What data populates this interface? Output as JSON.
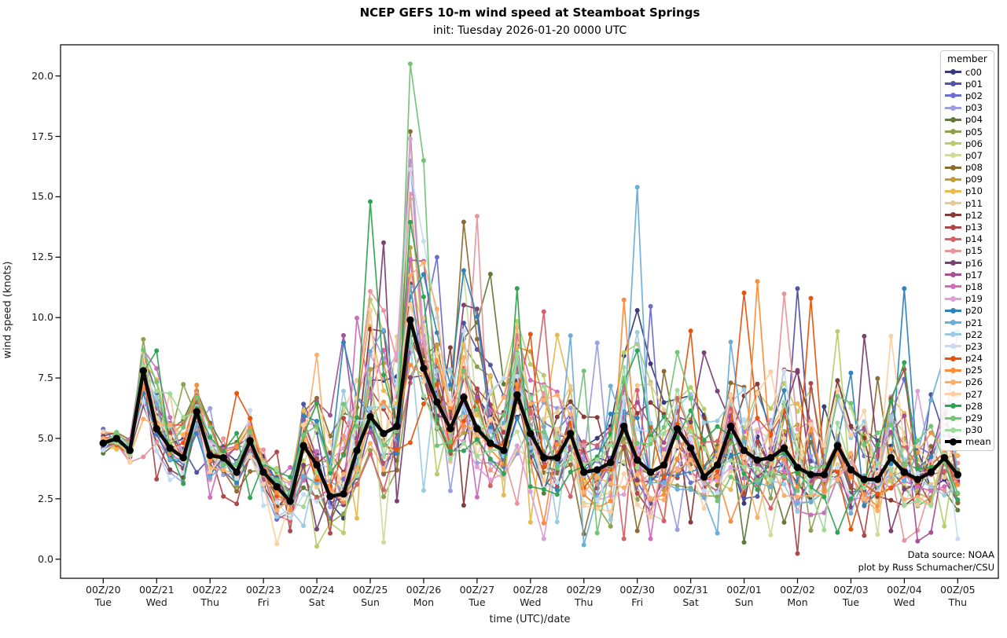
{
  "figure": {
    "title": "NCEP GEFS 10-m wind speed at Steamboat Springs",
    "subtitle": "init: Tuesday 2026-01-20 0000 UTC"
  },
  "axes": {
    "ylabel": "wind speed (knots)",
    "xlabel": "time (UTC)/date"
  },
  "annotation": {
    "line1": "Data source: NOAA",
    "line2": "plot by Russ Schumacher/CSU"
  },
  "legend": {
    "title": "member"
  },
  "chart_data": {
    "type": "line",
    "title": "NCEP GEFS 10-m wind speed at Steamboat Springs",
    "subtitle": "init: Tuesday 2026-01-20 0000 UTC",
    "xlabel": "time (UTC)/date",
    "ylabel": "wind speed (knots)",
    "legend_title": "member",
    "legend_position": "upper right",
    "grid": false,
    "time_step_hours": 6,
    "n_times": 65,
    "ylim": [
      -0.8,
      21.3
    ],
    "y_ticks": [
      "0.0",
      "2.5",
      "5.0",
      "7.5",
      "10.0",
      "12.5",
      "15.0",
      "17.5",
      "20.0"
    ],
    "y_tick_values": [
      0,
      2.5,
      5,
      7.5,
      10,
      12.5,
      15,
      17.5,
      20
    ],
    "x_tick_labels": [
      [
        "00Z/20",
        "Tue"
      ],
      [
        "00Z/21",
        "Wed"
      ],
      [
        "00Z/22",
        "Thu"
      ],
      [
        "00Z/23",
        "Fri"
      ],
      [
        "00Z/24",
        "Sat"
      ],
      [
        "00Z/25",
        "Sun"
      ],
      [
        "00Z/26",
        "Mon"
      ],
      [
        "00Z/27",
        "Tue"
      ],
      [
        "00Z/28",
        "Wed"
      ],
      [
        "00Z/29",
        "Thu"
      ],
      [
        "00Z/30",
        "Fri"
      ],
      [
        "00Z/31",
        "Sat"
      ],
      [
        "00Z/01",
        "Sun"
      ],
      [
        "00Z/02",
        "Mon"
      ],
      [
        "00Z/03",
        "Tue"
      ],
      [
        "00Z/04",
        "Wed"
      ],
      [
        "00Z/05",
        "Thu"
      ]
    ],
    "members": [
      {
        "name": "c00",
        "color": "#393b79"
      },
      {
        "name": "p01",
        "color": "#5254a3"
      },
      {
        "name": "p02",
        "color": "#6b6ecf"
      },
      {
        "name": "p03",
        "color": "#9c9ede"
      },
      {
        "name": "p04",
        "color": "#637939"
      },
      {
        "name": "p05",
        "color": "#8ca252"
      },
      {
        "name": "p06",
        "color": "#b5cf6b"
      },
      {
        "name": "p07",
        "color": "#cedb9c"
      },
      {
        "name": "p08",
        "color": "#8c6d31"
      },
      {
        "name": "p09",
        "color": "#bd9e39"
      },
      {
        "name": "p10",
        "color": "#e7ba52"
      },
      {
        "name": "p11",
        "color": "#e7cb94"
      },
      {
        "name": "p12",
        "color": "#843c39"
      },
      {
        "name": "p13",
        "color": "#ad494a"
      },
      {
        "name": "p14",
        "color": "#d6616b"
      },
      {
        "name": "p15",
        "color": "#e7969c"
      },
      {
        "name": "p16",
        "color": "#7b4173"
      },
      {
        "name": "p17",
        "color": "#a55194"
      },
      {
        "name": "p18",
        "color": "#ce6dbd"
      },
      {
        "name": "p19",
        "color": "#de9ed6"
      },
      {
        "name": "p20",
        "color": "#3182bd"
      },
      {
        "name": "p21",
        "color": "#6baed6"
      },
      {
        "name": "p22",
        "color": "#9ecae1"
      },
      {
        "name": "p23",
        "color": "#c6dbef"
      },
      {
        "name": "p24",
        "color": "#e6550d"
      },
      {
        "name": "p25",
        "color": "#fd8d3c"
      },
      {
        "name": "p26",
        "color": "#fdae6b"
      },
      {
        "name": "p27",
        "color": "#fdd0a2"
      },
      {
        "name": "p28",
        "color": "#31a354"
      },
      {
        "name": "p29",
        "color": "#74c476"
      },
      {
        "name": "p30",
        "color": "#a1d99b"
      },
      {
        "name": "mean",
        "color": "#000000"
      }
    ],
    "mean_series": [
      4.8,
      5.0,
      4.5,
      7.8,
      5.4,
      4.6,
      4.2,
      6.1,
      4.3,
      4.2,
      3.6,
      4.9,
      3.6,
      3.0,
      2.4,
      4.7,
      3.9,
      2.6,
      2.7,
      4.5,
      5.9,
      5.2,
      5.5,
      9.9,
      7.9,
      6.5,
      5.4,
      6.7,
      5.4,
      4.8,
      4.5,
      6.8,
      5.2,
      4.2,
      4.2,
      5.2,
      3.6,
      3.7,
      4.0,
      5.5,
      4.1,
      3.6,
      3.9,
      5.4,
      4.6,
      3.4,
      3.9,
      5.5,
      4.5,
      4.1,
      4.2,
      4.6,
      3.8,
      3.5,
      3.5,
      4.7,
      3.7,
      3.3,
      3.3,
      4.2,
      3.6,
      3.3,
      3.6,
      4.2,
      3.5
    ],
    "ensemble_max": [
      5.5,
      5.4,
      5.2,
      9.1,
      8.8,
      7.0,
      7.4,
      7.4,
      6.4,
      5.0,
      7.1,
      6.3,
      4.6,
      4.5,
      4.0,
      8.0,
      8.7,
      6.0,
      9.3,
      10.0,
      14.8,
      13.1,
      9.4,
      20.5,
      16.5,
      12.6,
      9.0,
      14.2,
      14.2,
      11.8,
      9.6,
      11.3,
      9.5,
      10.4,
      9.3,
      9.3,
      8.0,
      9.1,
      7.3,
      10.9,
      15.4,
      10.5,
      8.0,
      8.6,
      9.7,
      8.7,
      7.0,
      9.0,
      11.1,
      11.5,
      8.0,
      11.0,
      11.2,
      10.8,
      6.5,
      9.6,
      7.8,
      9.3,
      7.5,
      9.3,
      11.2,
      7.0,
      6.9,
      8.5,
      9.5
    ],
    "ensemble_min": [
      4.4,
      4.4,
      3.9,
      4.2,
      3.2,
      3.2,
      2.9,
      3.5,
      2.5,
      2.5,
      2.2,
      2.5,
      2.2,
      0.5,
      1.0,
      1.2,
      0.4,
      0.9,
      1.0,
      1.5,
      2.5,
      0.6,
      2.2,
      4.8,
      2.6,
      3.5,
      2.8,
      2.2,
      2.5,
      2.9,
      2.5,
      2.2,
      1.3,
      1.3,
      1.5,
      2.4,
      0.5,
      1.0,
      1.5,
      0.8,
      1.0,
      0.8,
      1.5,
      1.0,
      1.5,
      2.0,
      1.0,
      1.5,
      0.5,
      1.5,
      1.0,
      1.5,
      0.2,
      1.0,
      1.0,
      1.0,
      1.0,
      0.8,
      1.0,
      1.0,
      0.6,
      0.6,
      1.0,
      1.2,
      0.6
    ],
    "notable_member_peaks": [
      {
        "t_index": 3,
        "time": "18Z Jan 20",
        "member": "p05",
        "value": 9.1
      },
      {
        "t_index": 20,
        "time": "00Z Jan 25",
        "member": "p28",
        "value": 14.8
      },
      {
        "t_index": 21,
        "time": "06Z Jan 25",
        "member": "p16",
        "value": 13.1
      },
      {
        "t_index": 23,
        "time": "18Z Jan 25",
        "member": "p29",
        "value": 20.5
      },
      {
        "t_index": 23,
        "time": "18Z Jan 25",
        "member": "p08",
        "value": 17.7
      },
      {
        "t_index": 23,
        "time": "18Z Jan 25",
        "member": "p19",
        "value": 17.4
      },
      {
        "t_index": 24,
        "time": "00Z Jan 26",
        "member": "p29",
        "value": 16.5
      },
      {
        "t_index": 28,
        "time": "00Z Jan 27",
        "member": "p15",
        "value": 14.2
      },
      {
        "t_index": 29,
        "time": "06Z Jan 27",
        "member": "p04",
        "value": 11.8
      },
      {
        "t_index": 40,
        "time": "00Z Jan 30",
        "member": "p21",
        "value": 15.4
      },
      {
        "t_index": 49,
        "time": "06Z Feb 01",
        "member": "p25",
        "value": 11.5
      },
      {
        "t_index": 52,
        "time": "00Z Feb 02",
        "member": "p01",
        "value": 11.2
      },
      {
        "t_index": 53,
        "time": "06Z Feb 02",
        "member": "p24",
        "value": 10.8
      },
      {
        "t_index": 60,
        "time": "00Z Feb 04",
        "member": "p20",
        "value": 11.2
      }
    ]
  }
}
